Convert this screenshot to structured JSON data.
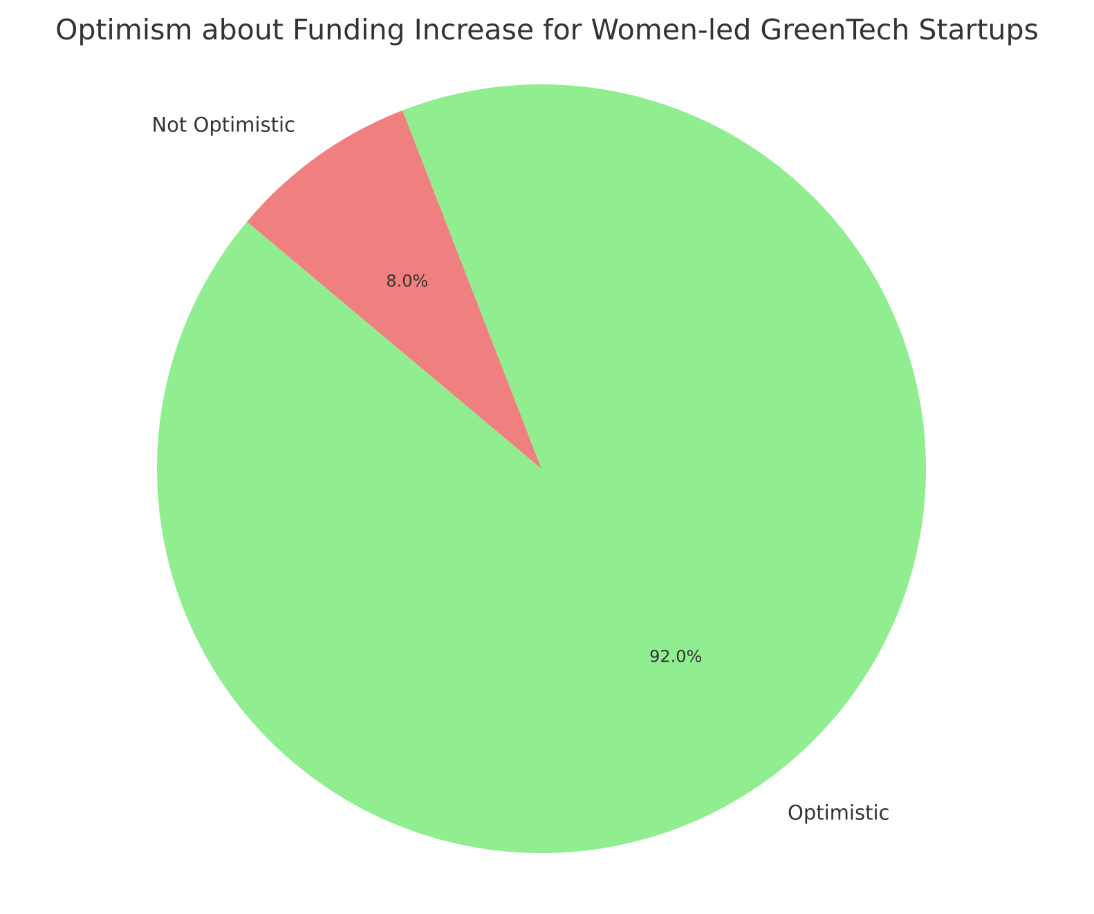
{
  "chart_data": {
    "type": "pie",
    "title": "Optimism about Funding Increase for Women-led GreenTech Startups",
    "start_angle_deg": 140,
    "direction": "counterclockwise",
    "slices": [
      {
        "label": "Optimistic",
        "value": 92.0,
        "pct_label": "92.0%",
        "color": "#90ee90"
      },
      {
        "label": "Not Optimistic",
        "value": 8.0,
        "pct_label": "8.0%",
        "color": "#f08080"
      }
    ]
  }
}
